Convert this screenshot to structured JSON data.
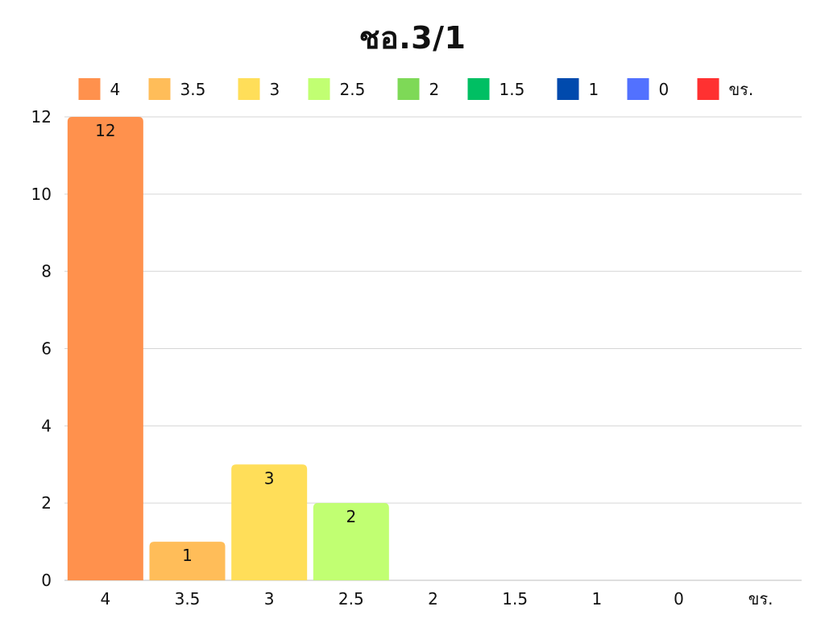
{
  "chart_data": {
    "type": "bar",
    "title": "ชอ.3/1",
    "categories": [
      "4",
      "3.5",
      "3",
      "2.5",
      "2",
      "1.5",
      "1",
      "0",
      "ขร."
    ],
    "values": [
      12,
      1,
      3,
      2,
      0,
      0,
      0,
      0,
      0
    ],
    "colors": [
      "#FF914D",
      "#FFBD59",
      "#FFDE59",
      "#C1FF72",
      "#7ED957",
      "#00BF63",
      "#004AAD",
      "#5271FF",
      "#FF3131"
    ],
    "legend": [
      "4",
      "3.5",
      "3",
      "2.5",
      "2",
      "1.5",
      "1",
      "0",
      "ขร."
    ],
    "legend_position": "top",
    "ylim": [
      0,
      12
    ],
    "yticks": [
      "0",
      "2",
      "4",
      "6",
      "8",
      "10",
      "12"
    ],
    "grid": true,
    "data_labels": [
      "12",
      "1",
      "3",
      "2",
      "",
      "",
      "",
      "",
      ""
    ],
    "xlabel": "",
    "ylabel": ""
  }
}
